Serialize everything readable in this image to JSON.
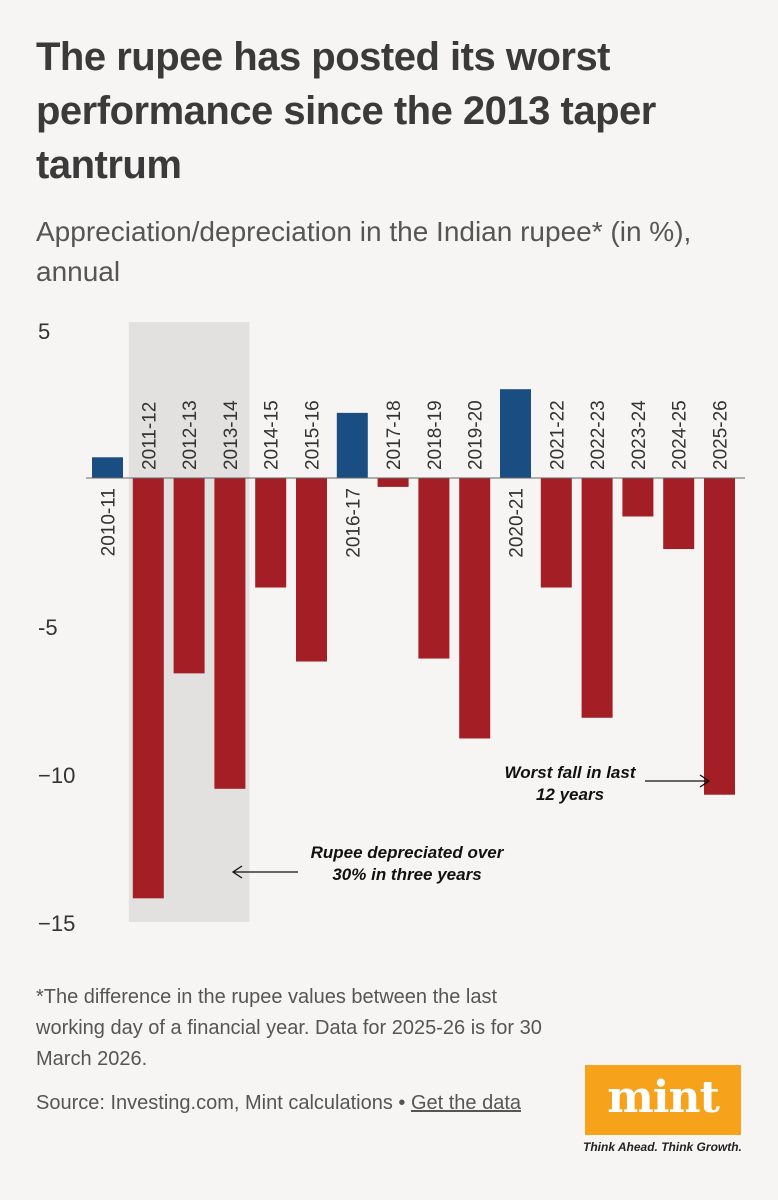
{
  "title": "The rupee has posted its worst performance since the 2013 taper tantrum",
  "subtitle": "Appreciation/depreciation in the Indian rupee* (in %), annual",
  "footnote": "*The difference in the rupee values between the last working day of a financial year. Data for 2025-26 is for 30 March 2026.",
  "source": {
    "text": "Source: Investing.com, Mint calculations • ",
    "link": "Get the data"
  },
  "logo": {
    "text": "mint",
    "tagline": "Think Ahead. Think Growth."
  },
  "colors": {
    "positive": "#1a4e83",
    "negative": "#a31f25",
    "highlight": "#e3e1e0",
    "background": "#f7f5f4"
  },
  "chart_data": {
    "type": "bar",
    "categories": [
      "2010-11",
      "2011-12",
      "2012-13",
      "2013-14",
      "2014-15",
      "2015-16",
      "2016-17",
      "2017-18",
      "2018-19",
      "2019-20",
      "2020-21",
      "2021-22",
      "2022-23",
      "2023-24",
      "2024-25",
      "2025-26"
    ],
    "values": [
      0.7,
      -14.2,
      -6.6,
      -10.5,
      -3.7,
      -6.2,
      2.2,
      -0.3,
      -6.1,
      -8.8,
      3.0,
      -3.7,
      -8.1,
      -1.3,
      -2.4,
      -10.7
    ],
    "yticks": [
      5,
      -5,
      -10,
      -15
    ],
    "ytick_labels": [
      "5",
      "-5",
      "−10",
      "−15"
    ],
    "ylim": [
      -15,
      5
    ],
    "highlight_range": [
      "2011-12",
      "2013-14"
    ],
    "annotations": [
      {
        "text_lines": [
          "Rupee depreciated over",
          "30% in three years"
        ],
        "target": "2013-14"
      },
      {
        "text_lines": [
          "Worst fall in last",
          "12 years"
        ],
        "target": "2025-26"
      }
    ]
  }
}
